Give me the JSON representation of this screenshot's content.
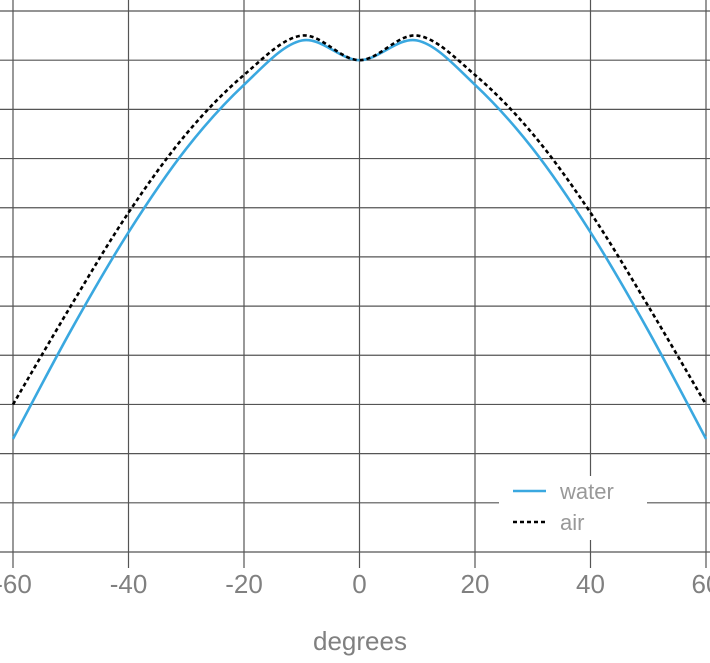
{
  "chart_data": {
    "type": "line",
    "title": "",
    "xlabel": "degrees",
    "ylabel": "",
    "xlim": [
      -60,
      60
    ],
    "ylim": [
      -0.1,
      1.0
    ],
    "x_ticks": [
      -60,
      -40,
      -20,
      0,
      20,
      40,
      60
    ],
    "x_tick_labels": [
      "-60",
      "-40",
      "-20",
      "0",
      "20",
      "40",
      "60"
    ],
    "y_gridlines": [
      -0.1,
      0.0,
      0.1,
      0.2,
      0.3,
      0.4,
      0.5,
      0.6,
      0.7,
      0.8,
      0.9,
      1.0
    ],
    "grid": true,
    "legend_position": "bottom-right",
    "series": [
      {
        "name": "water",
        "color": "#3aa8e0",
        "style": "solid",
        "x": [
          -60,
          -50,
          -40,
          -30,
          -20,
          -10,
          0,
          10,
          20,
          30,
          40,
          50,
          60
        ],
        "y": [
          0.13,
          0.35,
          0.55,
          0.72,
          0.85,
          0.94,
          0.9,
          0.94,
          0.85,
          0.72,
          0.55,
          0.35,
          0.13
        ]
      },
      {
        "name": "air",
        "color": "#000000",
        "style": "dashed",
        "x": [
          -60,
          -50,
          -40,
          -30,
          -20,
          -10,
          0,
          10,
          20,
          30,
          40,
          50,
          60
        ],
        "y": [
          0.2,
          0.4,
          0.59,
          0.75,
          0.87,
          0.95,
          0.9,
          0.95,
          0.87,
          0.75,
          0.59,
          0.4,
          0.2
        ]
      }
    ]
  }
}
